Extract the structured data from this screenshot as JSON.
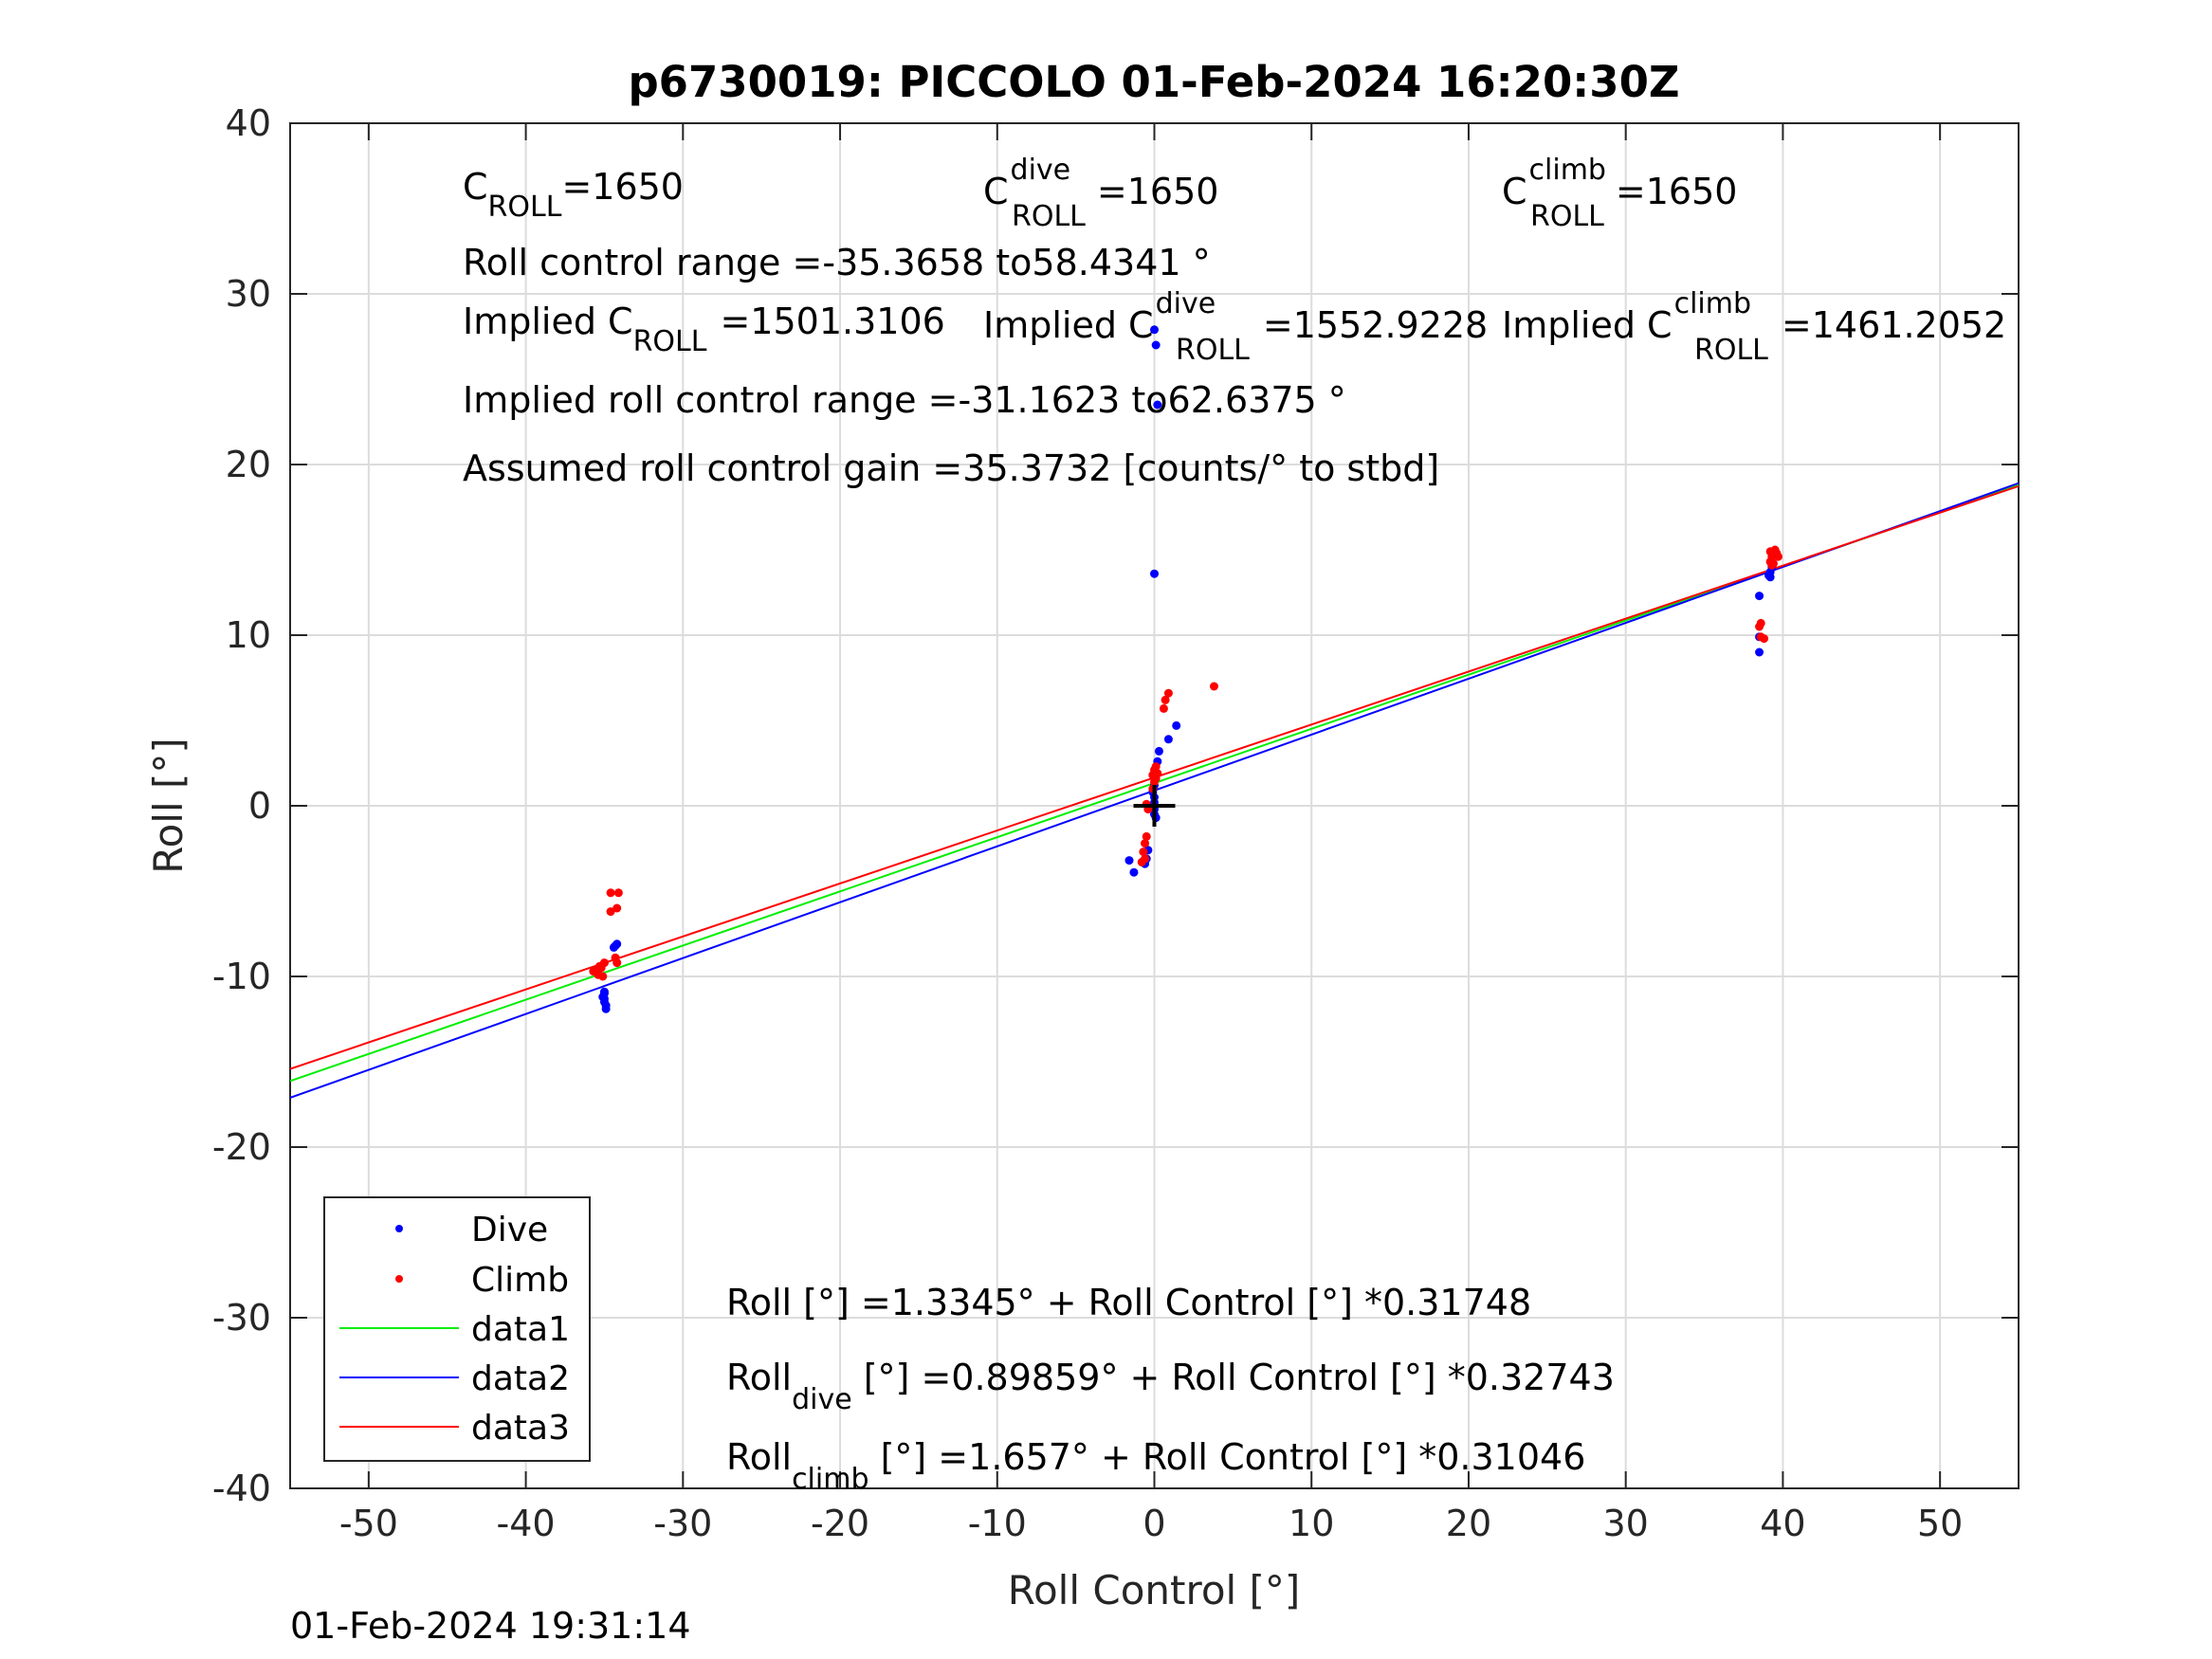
{
  "chart_data": {
    "type": "scatter",
    "title": "p6730019: PICCOLO 01-Feb-2024 16:20:30Z",
    "xlabel": "Roll Control [°]",
    "ylabel": "Roll [°]",
    "xlim": [
      -55,
      55
    ],
    "ylim": [
      -40,
      40
    ],
    "xticks": [
      -50,
      -40,
      -30,
      -20,
      -10,
      0,
      10,
      20,
      30,
      40,
      50
    ],
    "yticks": [
      -40,
      -30,
      -20,
      -10,
      0,
      10,
      20,
      30,
      40
    ],
    "grid": true,
    "legend_position": "bottom-left",
    "colors": {
      "dive": "#0000ff",
      "climb": "#ff0000",
      "data1": "#00ee00",
      "data2": "#0000ff",
      "data3": "#ff0000"
    },
    "series": [
      {
        "name": "Dive",
        "kind": "points",
        "color": "#0000ff",
        "points": [
          [
            -35,
            -11
          ],
          [
            -35,
            -11.3
          ],
          [
            -35,
            -11.5
          ],
          [
            -34.9,
            -11.7
          ],
          [
            -34.9,
            -11.9
          ],
          [
            -35.1,
            -11.2
          ],
          [
            -35,
            -10.9
          ],
          [
            -34.3,
            -8.2
          ],
          [
            -34.2,
            -8.1
          ],
          [
            -34.4,
            -8.3
          ],
          [
            0,
            27.9
          ],
          [
            0.1,
            27
          ],
          [
            0.2,
            23.5
          ],
          [
            0,
            13.6
          ],
          [
            1.4,
            4.7
          ],
          [
            0.9,
            3.9
          ],
          [
            0.3,
            3.2
          ],
          [
            0.2,
            2.6
          ],
          [
            0,
            1.7
          ],
          [
            0,
            1.2
          ],
          [
            -0.1,
            0.8
          ],
          [
            0,
            0.5
          ],
          [
            0,
            0.2
          ],
          [
            0,
            0
          ],
          [
            0,
            -0.2
          ],
          [
            0,
            -0.5
          ],
          [
            0.1,
            -0.7
          ],
          [
            -0.4,
            -2.6
          ],
          [
            -1.6,
            -3.2
          ],
          [
            -1.3,
            -3.9
          ],
          [
            -0.6,
            -3.4
          ],
          [
            -0.5,
            -3.1
          ],
          [
            38.5,
            12.3
          ],
          [
            38.5,
            9.9
          ],
          [
            38.5,
            9.0
          ],
          [
            39.2,
            13.4
          ],
          [
            39.2,
            13.7
          ],
          [
            39.3,
            14.0
          ],
          [
            39.1,
            13.5
          ]
        ]
      },
      {
        "name": "Climb",
        "kind": "points",
        "color": "#ff0000",
        "points": [
          [
            -34.6,
            -5.1
          ],
          [
            -34.1,
            -5.1
          ],
          [
            -34.6,
            -6.2
          ],
          [
            -34.2,
            -6.0
          ],
          [
            -34.3,
            -8.9
          ],
          [
            -34.2,
            -9.2
          ],
          [
            -35,
            -9.2
          ],
          [
            -35.3,
            -9.4
          ],
          [
            -35.5,
            -9.6
          ],
          [
            -35.7,
            -9.7
          ],
          [
            -35.4,
            -9.9
          ],
          [
            -35.1,
            -10.0
          ],
          [
            -35.2,
            -9.5
          ],
          [
            0.9,
            6.6
          ],
          [
            0.7,
            6.2
          ],
          [
            0.6,
            5.7
          ],
          [
            3.8,
            7.0
          ],
          [
            0.1,
            2.3
          ],
          [
            0,
            2.1
          ],
          [
            -0.1,
            1.8
          ],
          [
            0.1,
            1.6
          ],
          [
            0,
            1.4
          ],
          [
            0.2,
            1.9
          ],
          [
            -0.1,
            1.0
          ],
          [
            -0.5,
            0.1
          ],
          [
            -0.4,
            -0.2
          ],
          [
            -0.5,
            -1.8
          ],
          [
            -0.6,
            -2.2
          ],
          [
            -0.7,
            -2.7
          ],
          [
            -0.6,
            -3.1
          ],
          [
            -0.8,
            -3.3
          ],
          [
            38.6,
            10.7
          ],
          [
            38.5,
            10.5
          ],
          [
            38.8,
            9.8
          ],
          [
            38.6,
            9.9
          ],
          [
            39.2,
            14.9
          ],
          [
            39.3,
            14.6
          ],
          [
            39.2,
            14.3
          ],
          [
            39.4,
            14.2
          ],
          [
            39.6,
            14.8
          ],
          [
            39.7,
            14.6
          ],
          [
            39.5,
            15.0
          ],
          [
            39.3,
            14.1
          ]
        ]
      },
      {
        "name": "data1",
        "kind": "line",
        "color": "#00ee00",
        "x": [
          -55,
          55
        ],
        "y": [
          -16.1265,
          18.7959
        ]
      },
      {
        "name": "data2",
        "kind": "line",
        "color": "#0000ff",
        "x": [
          -55,
          55
        ],
        "y": [
          -17.1101,
          18.9072
        ]
      },
      {
        "name": "data3",
        "kind": "line",
        "color": "#ff0000",
        "x": [
          -55,
          55
        ],
        "y": [
          -15.4183,
          18.7323
        ]
      }
    ],
    "center_marker": {
      "x": 0,
      "y": 0
    },
    "annotations": {
      "c_roll": {
        "base": "C",
        "sub": "ROLL",
        "text": "=1650"
      },
      "c_roll_dive": {
        "base": "C",
        "sup": "dive",
        "sub": "ROLL",
        "text": "=1650"
      },
      "c_roll_climb": {
        "base": "C",
        "sup": "climb",
        "sub": "ROLL",
        "text": "=1650"
      },
      "roll_control_range": "Roll control range =-35.3658 to58.4341 °",
      "implied_c_roll": {
        "base": "Implied C",
        "sub": "ROLL",
        "text": "=1501.3106"
      },
      "implied_c_roll_dive": {
        "base": "Implied C",
        "sup": "dive",
        "sub": "ROLL",
        "text": "=1552.9228"
      },
      "implied_c_roll_climb": {
        "base": "Implied C",
        "sup": "climb",
        "sub": "ROLL",
        "text": "=1461.2052"
      },
      "implied_range": "Implied roll control range =-31.1623 to62.6375 °",
      "gain": "Assumed roll control gain =35.3732 [counts/° to stbd]",
      "fit_all": "Roll [°] =1.3345° + Roll Control [°] *0.31748",
      "fit_dive": {
        "base": "Roll",
        "sub": "dive",
        "text": " [°] =0.89859° + Roll Control [°] *0.32743"
      },
      "fit_climb": {
        "base": "Roll",
        "sub": "climb",
        "text": " [°] =1.657° + Roll Control [°] *0.31046"
      }
    },
    "legend": [
      "Dive",
      "Climb",
      "data1",
      "data2",
      "data3"
    ],
    "timestamp": "01-Feb-2024 19:31:14"
  }
}
